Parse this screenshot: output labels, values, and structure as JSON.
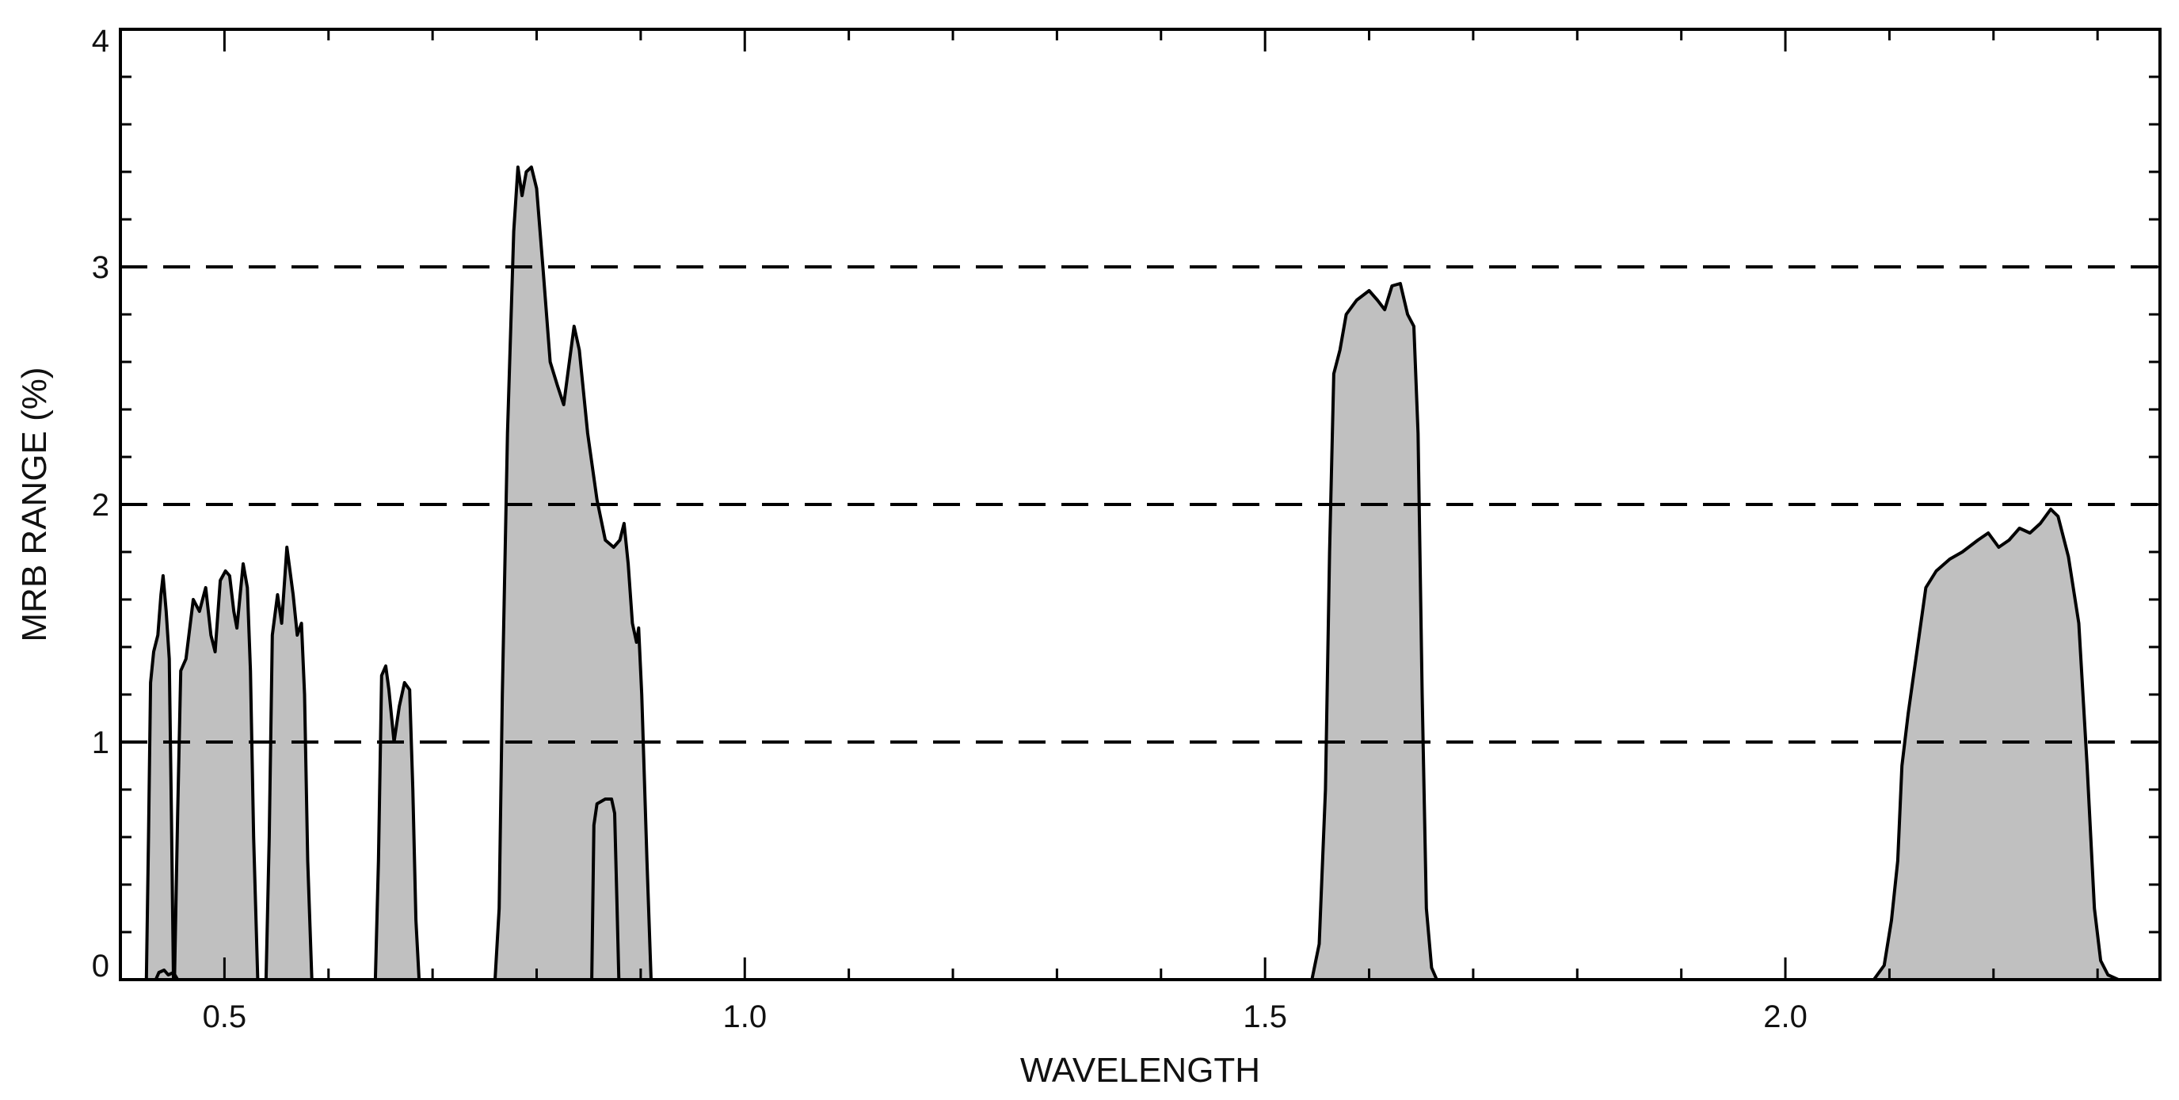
{
  "chart_data": {
    "type": "area",
    "title": "",
    "xlabel": "WAVELENGTH",
    "ylabel": "MRB RANGE (%)",
    "xlim": [
      0.4,
      2.36
    ],
    "ylim": [
      0,
      4
    ],
    "x_ticks": [
      {
        "value": 0.5,
        "label": "0.5"
      },
      {
        "value": 1.0,
        "label": "1.0"
      },
      {
        "value": 1.5,
        "label": "1.5"
      },
      {
        "value": 2.0,
        "label": "2.0"
      }
    ],
    "x_minor_step": 0.1,
    "y_ticks": [
      {
        "value": 0,
        "label": "0"
      },
      {
        "value": 1,
        "label": "1"
      },
      {
        "value": 2,
        "label": "2"
      },
      {
        "value": 3,
        "label": "3"
      },
      {
        "value": 4,
        "label": "4"
      }
    ],
    "y_minor_step": 0.2,
    "reference_lines": [
      1,
      2,
      3
    ],
    "grid": false,
    "fill_color": "#c0c0c0",
    "line_color": "#000000",
    "series": [
      {
        "points": [
          [
            0.425,
            0
          ],
          [
            0.427,
            0.6
          ],
          [
            0.429,
            1.25
          ],
          [
            0.432,
            1.38
          ],
          [
            0.436,
            1.45
          ],
          [
            0.439,
            1.62
          ],
          [
            0.441,
            1.7
          ],
          [
            0.444,
            1.55
          ],
          [
            0.447,
            1.35
          ],
          [
            0.449,
            0.7
          ],
          [
            0.451,
            0
          ]
        ]
      },
      {
        "points": [
          [
            0.434,
            0
          ],
          [
            0.437,
            0.03
          ],
          [
            0.442,
            0.04
          ],
          [
            0.446,
            0.02
          ],
          [
            0.451,
            0.03
          ],
          [
            0.455,
            0
          ]
        ]
      },
      {
        "points": [
          [
            0.452,
            0
          ],
          [
            0.455,
            0.7
          ],
          [
            0.458,
            1.3
          ],
          [
            0.463,
            1.35
          ],
          [
            0.47,
            1.6
          ],
          [
            0.476,
            1.55
          ],
          [
            0.482,
            1.65
          ],
          [
            0.487,
            1.45
          ],
          [
            0.491,
            1.38
          ],
          [
            0.496,
            1.68
          ],
          [
            0.501,
            1.72
          ],
          [
            0.505,
            1.7
          ],
          [
            0.509,
            1.55
          ],
          [
            0.512,
            1.48
          ],
          [
            0.518,
            1.75
          ],
          [
            0.522,
            1.65
          ],
          [
            0.525,
            1.3
          ],
          [
            0.528,
            0.6
          ],
          [
            0.532,
            0
          ]
        ]
      },
      {
        "points": [
          [
            0.54,
            0
          ],
          [
            0.543,
            0.6
          ],
          [
            0.546,
            1.45
          ],
          [
            0.551,
            1.62
          ],
          [
            0.555,
            1.5
          ],
          [
            0.56,
            1.82
          ],
          [
            0.566,
            1.62
          ],
          [
            0.57,
            1.45
          ],
          [
            0.574,
            1.5
          ],
          [
            0.577,
            1.2
          ],
          [
            0.58,
            0.5
          ],
          [
            0.584,
            0
          ]
        ]
      },
      {
        "points": [
          [
            0.645,
            0
          ],
          [
            0.648,
            0.5
          ],
          [
            0.651,
            1.28
          ],
          [
            0.655,
            1.32
          ],
          [
            0.658,
            1.22
          ],
          [
            0.663,
            1.0
          ],
          [
            0.668,
            1.15
          ],
          [
            0.673,
            1.25
          ],
          [
            0.678,
            1.22
          ],
          [
            0.681,
            0.8
          ],
          [
            0.684,
            0.25
          ],
          [
            0.687,
            0
          ]
        ]
      },
      {
        "points": [
          [
            0.76,
            0
          ],
          [
            0.764,
            0.3
          ],
          [
            0.767,
            1.2
          ],
          [
            0.772,
            2.3
          ],
          [
            0.778,
            3.15
          ],
          [
            0.782,
            3.42
          ],
          [
            0.786,
            3.3
          ],
          [
            0.79,
            3.4
          ],
          [
            0.795,
            3.42
          ],
          [
            0.8,
            3.33
          ],
          [
            0.806,
            3.0
          ],
          [
            0.813,
            2.6
          ],
          [
            0.82,
            2.5
          ],
          [
            0.826,
            2.42
          ],
          [
            0.832,
            2.62
          ],
          [
            0.836,
            2.75
          ],
          [
            0.841,
            2.65
          ],
          [
            0.849,
            2.3
          ],
          [
            0.858,
            2.02
          ],
          [
            0.866,
            1.85
          ],
          [
            0.874,
            1.82
          ],
          [
            0.88,
            1.85
          ],
          [
            0.884,
            1.92
          ],
          [
            0.888,
            1.75
          ],
          [
            0.892,
            1.5
          ],
          [
            0.896,
            1.42
          ],
          [
            0.898,
            1.48
          ],
          [
            0.901,
            1.2
          ],
          [
            0.906,
            0.5
          ],
          [
            0.91,
            0
          ]
        ]
      },
      {
        "points": [
          [
            0.853,
            0
          ],
          [
            0.855,
            0.65
          ],
          [
            0.858,
            0.74
          ],
          [
            0.866,
            0.76
          ],
          [
            0.872,
            0.76
          ],
          [
            0.875,
            0.7
          ],
          [
            0.877,
            0.35
          ],
          [
            0.879,
            0
          ]
        ]
      },
      {
        "points": [
          [
            1.545,
            0
          ],
          [
            1.552,
            0.15
          ],
          [
            1.558,
            0.8
          ],
          [
            1.562,
            1.8
          ],
          [
            1.566,
            2.55
          ],
          [
            1.572,
            2.65
          ],
          [
            1.578,
            2.8
          ],
          [
            1.588,
            2.86
          ],
          [
            1.6,
            2.9
          ],
          [
            1.608,
            2.86
          ],
          [
            1.615,
            2.82
          ],
          [
            1.622,
            2.92
          ],
          [
            1.63,
            2.93
          ],
          [
            1.637,
            2.8
          ],
          [
            1.643,
            2.75
          ],
          [
            1.647,
            2.3
          ],
          [
            1.651,
            1.2
          ],
          [
            1.655,
            0.3
          ],
          [
            1.66,
            0.05
          ],
          [
            1.665,
            0
          ]
        ]
      },
      {
        "points": [
          [
            2.085,
            0
          ],
          [
            2.095,
            0.06
          ],
          [
            2.102,
            0.25
          ],
          [
            2.108,
            0.5
          ],
          [
            2.112,
            0.9
          ],
          [
            2.118,
            1.12
          ],
          [
            2.127,
            1.4
          ],
          [
            2.135,
            1.65
          ],
          [
            2.145,
            1.72
          ],
          [
            2.158,
            1.77
          ],
          [
            2.17,
            1.8
          ],
          [
            2.185,
            1.85
          ],
          [
            2.195,
            1.88
          ],
          [
            2.205,
            1.82
          ],
          [
            2.215,
            1.85
          ],
          [
            2.225,
            1.9
          ],
          [
            2.235,
            1.88
          ],
          [
            2.245,
            1.92
          ],
          [
            2.255,
            1.98
          ],
          [
            2.262,
            1.95
          ],
          [
            2.272,
            1.78
          ],
          [
            2.282,
            1.5
          ],
          [
            2.29,
            0.9
          ],
          [
            2.297,
            0.3
          ],
          [
            2.303,
            0.08
          ],
          [
            2.31,
            0.02
          ],
          [
            2.32,
            0
          ]
        ]
      }
    ]
  }
}
